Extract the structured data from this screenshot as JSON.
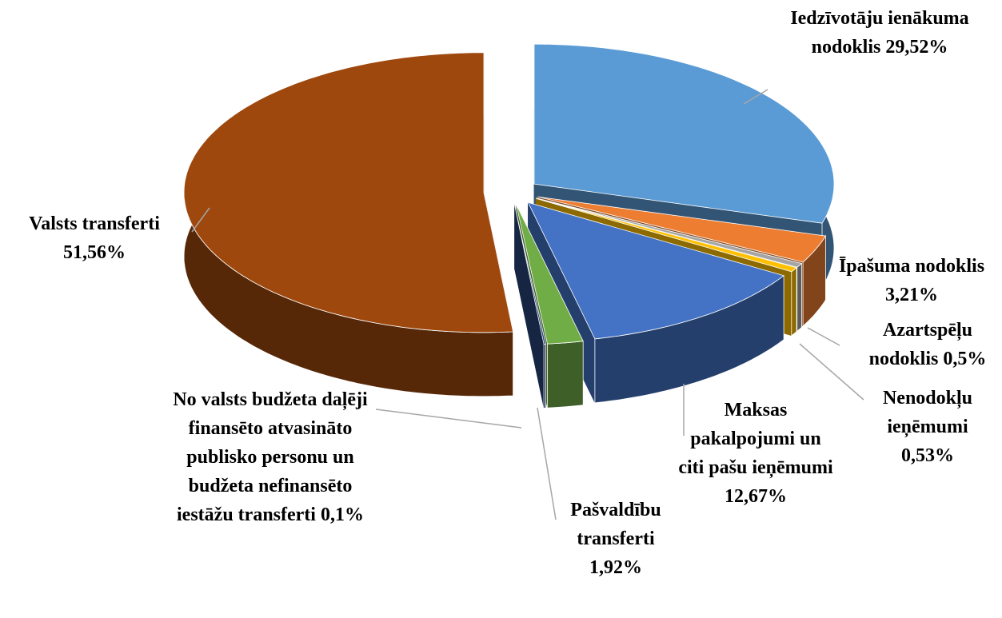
{
  "chart_data": {
    "type": "pie3d",
    "categories": [
      "Iedzīvotāju ienākuma nodoklis",
      "Īpašuma nodoklis",
      "Azartspēļu nodoklis",
      "Nenodokļu ieņēmumi",
      "Maksas pakalpojumi un citi pašu ieņēmumi",
      "Pašvaldību transferti",
      "No valsts budžeta daļēji finansēto atvasināto publisko personu un budžeta nefinansēto iestāžu transferti",
      "Valsts transferti"
    ],
    "values": [
      29.52,
      3.21,
      0.5,
      0.53,
      12.67,
      1.92,
      0.1,
      51.56
    ],
    "value_labels": [
      "29,52%",
      "3,21%",
      "0,5%",
      "0,53%",
      "12,67%",
      "1,92%",
      "0,1%",
      "51,56%"
    ],
    "colors": [
      "#5b9bd5",
      "#ed7d31",
      "#a5a5a5",
      "#ffc000",
      "#4472c4",
      "#70ad47",
      "#264478",
      "#9e480e"
    ]
  }
}
